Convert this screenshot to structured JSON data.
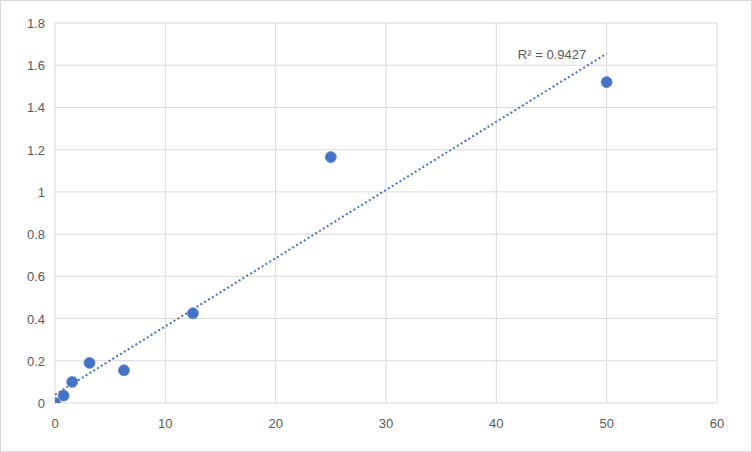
{
  "chart_data": {
    "type": "scatter",
    "series": [
      {
        "type": "scatter",
        "color": "#4472c4",
        "marker": "circle",
        "x": [
          0,
          0.78,
          1.56,
          3.125,
          6.25,
          12.5,
          25,
          50
        ],
        "values": [
          0,
          0.035,
          0.1,
          0.19,
          0.155,
          0.425,
          1.165,
          1.52
        ]
      },
      {
        "type": "line",
        "color": "#4472c4",
        "line_style": "dotted",
        "x": [
          0,
          50
        ],
        "values": [
          0.04,
          1.655
        ]
      }
    ],
    "xlim": [
      0,
      60
    ],
    "xticks": [
      0,
      10,
      20,
      30,
      40,
      50,
      60
    ],
    "ylim": [
      0,
      1.8
    ],
    "yticks": [
      0,
      0.2,
      0.4,
      0.6,
      0.8,
      1,
      1.2,
      1.4,
      1.6,
      1.8
    ],
    "grid": true,
    "annotations": [
      "R² = 0.9427"
    ]
  }
}
